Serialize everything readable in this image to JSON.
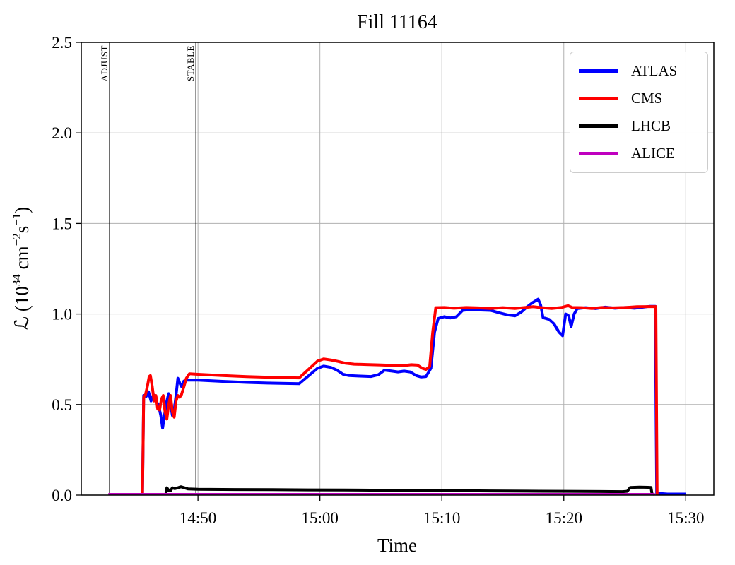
{
  "chart_data": {
    "type": "line",
    "title": "Fill 11164",
    "xlabel": "Time",
    "ylabel_text": "L (10^34 cm^-2 s^-1)",
    "ylabel_parts": {
      "a": "ℒ (10",
      "b": "34",
      "c": " cm",
      "d": "−2",
      "e": "s",
      "f": "−1",
      "g": ")"
    },
    "x_unit": "minutes after 14:40",
    "xlim": [
      0.43,
      52.3
    ],
    "ylim": [
      0.0,
      2.5
    ],
    "grid": true,
    "legend_position": "upper right",
    "colors": {
      "grid": "#b0b0b0",
      "axis": "#000000",
      "background": "#ffffff"
    },
    "xticks": [
      {
        "t": 10,
        "label": "14:50"
      },
      {
        "t": 20,
        "label": "15:00"
      },
      {
        "t": 30,
        "label": "15:10"
      },
      {
        "t": 40,
        "label": "15:20"
      },
      {
        "t": 50,
        "label": "15:30"
      }
    ],
    "yticks": [
      {
        "v": 0.0,
        "label": "0.0"
      },
      {
        "v": 0.5,
        "label": "0.5"
      },
      {
        "v": 1.0,
        "label": "1.0"
      },
      {
        "v": 1.5,
        "label": "1.5"
      },
      {
        "v": 2.0,
        "label": "2.0"
      },
      {
        "v": 2.5,
        "label": "2.5"
      }
    ],
    "events": [
      {
        "label": "ADJUST",
        "t": 2.75,
        "time": "14:42.7"
      },
      {
        "label": "STABLE",
        "t": 9.83,
        "time": "14:49.8"
      }
    ],
    "series": [
      {
        "name": "ATLAS",
        "color": "#0000ff",
        "linewidth": 4,
        "points": [
          [
            5.45,
            0.0
          ],
          [
            5.55,
            0.55
          ],
          [
            5.75,
            0.545
          ],
          [
            5.95,
            0.57
          ],
          [
            6.15,
            0.52
          ],
          [
            6.35,
            0.555
          ],
          [
            6.55,
            0.52
          ],
          [
            6.75,
            0.5
          ],
          [
            6.95,
            0.44
          ],
          [
            7.1,
            0.37
          ],
          [
            7.3,
            0.46
          ],
          [
            7.45,
            0.52
          ],
          [
            7.6,
            0.56
          ],
          [
            7.75,
            0.5
          ],
          [
            7.9,
            0.44
          ],
          [
            8.05,
            0.47
          ],
          [
            8.2,
            0.55
          ],
          [
            8.35,
            0.645
          ],
          [
            8.5,
            0.62
          ],
          [
            8.65,
            0.6
          ],
          [
            8.85,
            0.63
          ],
          [
            9.1,
            0.635
          ],
          [
            10,
            0.635
          ],
          [
            12,
            0.628
          ],
          [
            14,
            0.622
          ],
          [
            16,
            0.618
          ],
          [
            18.3,
            0.615
          ],
          [
            19,
            0.655
          ],
          [
            19.8,
            0.7
          ],
          [
            20.3,
            0.712
          ],
          [
            20.9,
            0.705
          ],
          [
            21.4,
            0.69
          ],
          [
            21.9,
            0.667
          ],
          [
            22.4,
            0.66
          ],
          [
            23.3,
            0.657
          ],
          [
            24.2,
            0.655
          ],
          [
            24.8,
            0.665
          ],
          [
            25.3,
            0.69
          ],
          [
            25.9,
            0.685
          ],
          [
            26.4,
            0.68
          ],
          [
            26.9,
            0.685
          ],
          [
            27.4,
            0.68
          ],
          [
            27.9,
            0.66
          ],
          [
            28.3,
            0.652
          ],
          [
            28.7,
            0.655
          ],
          [
            29.1,
            0.7
          ],
          [
            29.4,
            0.9
          ],
          [
            29.7,
            0.975
          ],
          [
            30.2,
            0.985
          ],
          [
            30.7,
            0.978
          ],
          [
            31.2,
            0.985
          ],
          [
            31.7,
            1.02
          ],
          [
            32.4,
            1.025
          ],
          [
            33.2,
            1.022
          ],
          [
            34,
            1.02
          ],
          [
            34.8,
            1.005
          ],
          [
            35.4,
            0.995
          ],
          [
            36,
            0.99
          ],
          [
            36.5,
            1.01
          ],
          [
            37,
            1.04
          ],
          [
            37.5,
            1.065
          ],
          [
            37.9,
            1.082
          ],
          [
            38.1,
            1.05
          ],
          [
            38.3,
            0.98
          ],
          [
            38.8,
            0.97
          ],
          [
            39.2,
            0.945
          ],
          [
            39.6,
            0.9
          ],
          [
            39.9,
            0.88
          ],
          [
            40.15,
            1.0
          ],
          [
            40.4,
            0.99
          ],
          [
            40.6,
            0.93
          ],
          [
            40.85,
            1.0
          ],
          [
            41.1,
            1.03
          ],
          [
            41.8,
            1.035
          ],
          [
            42.6,
            1.03
          ],
          [
            43.4,
            1.038
          ],
          [
            44.2,
            1.032
          ],
          [
            45,
            1.036
          ],
          [
            45.8,
            1.032
          ],
          [
            46.5,
            1.038
          ],
          [
            47,
            1.042
          ],
          [
            47.5,
            1.042
          ],
          [
            47.62,
            0.01
          ],
          [
            48.5,
            0.006
          ],
          [
            50,
            0.006
          ]
        ]
      },
      {
        "name": "CMS",
        "color": "#ff0000",
        "linewidth": 4,
        "points": [
          [
            5.45,
            0.0
          ],
          [
            5.55,
            0.54
          ],
          [
            5.7,
            0.555
          ],
          [
            5.85,
            0.6
          ],
          [
            6.0,
            0.655
          ],
          [
            6.1,
            0.66
          ],
          [
            6.25,
            0.6
          ],
          [
            6.4,
            0.52
          ],
          [
            6.55,
            0.55
          ],
          [
            6.7,
            0.475
          ],
          [
            6.85,
            0.47
          ],
          [
            7.0,
            0.53
          ],
          [
            7.15,
            0.55
          ],
          [
            7.3,
            0.46
          ],
          [
            7.45,
            0.42
          ],
          [
            7.6,
            0.5
          ],
          [
            7.75,
            0.55
          ],
          [
            7.9,
            0.46
          ],
          [
            8.05,
            0.43
          ],
          [
            8.2,
            0.52
          ],
          [
            8.35,
            0.55
          ],
          [
            8.5,
            0.54
          ],
          [
            8.65,
            0.555
          ],
          [
            8.85,
            0.6
          ],
          [
            9.05,
            0.645
          ],
          [
            9.3,
            0.67
          ],
          [
            10,
            0.667
          ],
          [
            12,
            0.66
          ],
          [
            14,
            0.654
          ],
          [
            16,
            0.65
          ],
          [
            18.3,
            0.647
          ],
          [
            19,
            0.69
          ],
          [
            19.8,
            0.74
          ],
          [
            20.3,
            0.752
          ],
          [
            20.9,
            0.746
          ],
          [
            21.5,
            0.738
          ],
          [
            22.1,
            0.728
          ],
          [
            22.8,
            0.723
          ],
          [
            23.8,
            0.721
          ],
          [
            24.8,
            0.719
          ],
          [
            25.8,
            0.717
          ],
          [
            26.8,
            0.715
          ],
          [
            27.5,
            0.72
          ],
          [
            28.0,
            0.718
          ],
          [
            28.4,
            0.7
          ],
          [
            28.7,
            0.694
          ],
          [
            29.0,
            0.71
          ],
          [
            29.25,
            0.9
          ],
          [
            29.5,
            1.035
          ],
          [
            30.2,
            1.036
          ],
          [
            31,
            1.032
          ],
          [
            32,
            1.036
          ],
          [
            33,
            1.034
          ],
          [
            34,
            1.031
          ],
          [
            35,
            1.035
          ],
          [
            36,
            1.031
          ],
          [
            36.8,
            1.036
          ],
          [
            37.5,
            1.04
          ],
          [
            38.2,
            1.035
          ],
          [
            39,
            1.031
          ],
          [
            39.8,
            1.036
          ],
          [
            40.35,
            1.046
          ],
          [
            40.7,
            1.036
          ],
          [
            41.5,
            1.035
          ],
          [
            42.3,
            1.031
          ],
          [
            43.1,
            1.036
          ],
          [
            44,
            1.034
          ],
          [
            45,
            1.036
          ],
          [
            46,
            1.04
          ],
          [
            47,
            1.041
          ],
          [
            47.55,
            1.041
          ],
          [
            47.65,
            0.0
          ]
        ]
      },
      {
        "name": "LHCB",
        "color": "#000000",
        "linewidth": 4,
        "points": [
          [
            7.35,
            0.0
          ],
          [
            7.45,
            0.04
          ],
          [
            7.6,
            0.026
          ],
          [
            7.75,
            0.024
          ],
          [
            7.9,
            0.04
          ],
          [
            8.1,
            0.036
          ],
          [
            8.35,
            0.04
          ],
          [
            8.6,
            0.046
          ],
          [
            8.9,
            0.04
          ],
          [
            9.2,
            0.034
          ],
          [
            10,
            0.032
          ],
          [
            13,
            0.031
          ],
          [
            16,
            0.03
          ],
          [
            19,
            0.029
          ],
          [
            22,
            0.028
          ],
          [
            25,
            0.027
          ],
          [
            28,
            0.025
          ],
          [
            31,
            0.024
          ],
          [
            34,
            0.023
          ],
          [
            37,
            0.022
          ],
          [
            40,
            0.021
          ],
          [
            43,
            0.02
          ],
          [
            44.8,
            0.019
          ],
          [
            45.2,
            0.021
          ],
          [
            45.45,
            0.042
          ],
          [
            46.2,
            0.044
          ],
          [
            46.9,
            0.043
          ],
          [
            47.15,
            0.042
          ],
          [
            47.25,
            0.0
          ]
        ]
      },
      {
        "name": "ALICE",
        "color": "#bf00bf",
        "linewidth": 3.5,
        "points": [
          [
            2.65,
            0.005
          ],
          [
            47.4,
            0.005
          ],
          [
            47.45,
            0.0
          ]
        ]
      }
    ]
  }
}
